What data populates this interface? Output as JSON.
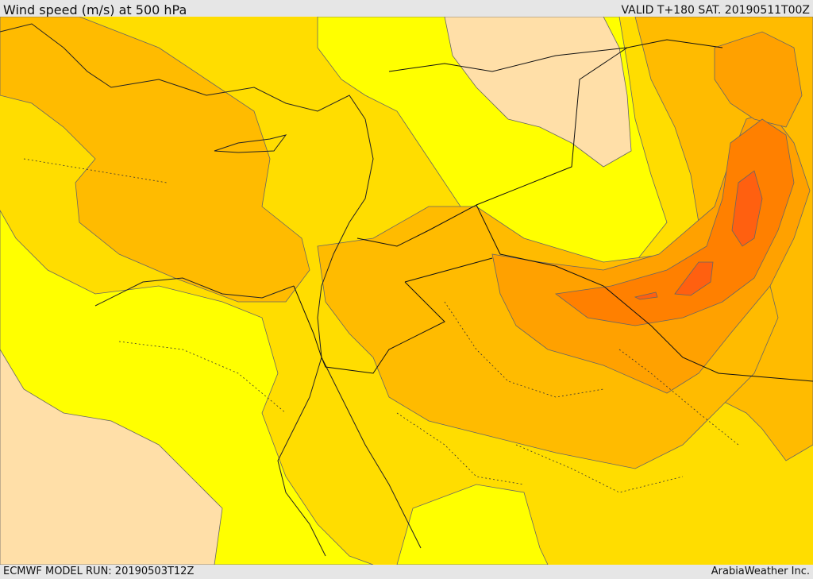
{
  "header": {
    "title": "Wind speed (m/s) at 500 hPa",
    "valid_time": "VALID T+180 SAT. 20190511T00Z"
  },
  "footer": {
    "model_run": "ECMWF MODEL RUN: 20190503T12Z",
    "credit": "ArabiaWeather Inc."
  },
  "map": {
    "region": "Middle East / Eastern Mediterranean",
    "variable": "500 hPa wind speed",
    "colors": {
      "pale": "#ffdfa8",
      "yellow": "#ffff00",
      "gold": "#ffdd00",
      "amber": "#ffbb00",
      "orange": "#ffa100",
      "dark_orange": "#ff8000",
      "red_orange": "#ff6010",
      "contour": "#555555",
      "border": "#111111"
    }
  }
}
